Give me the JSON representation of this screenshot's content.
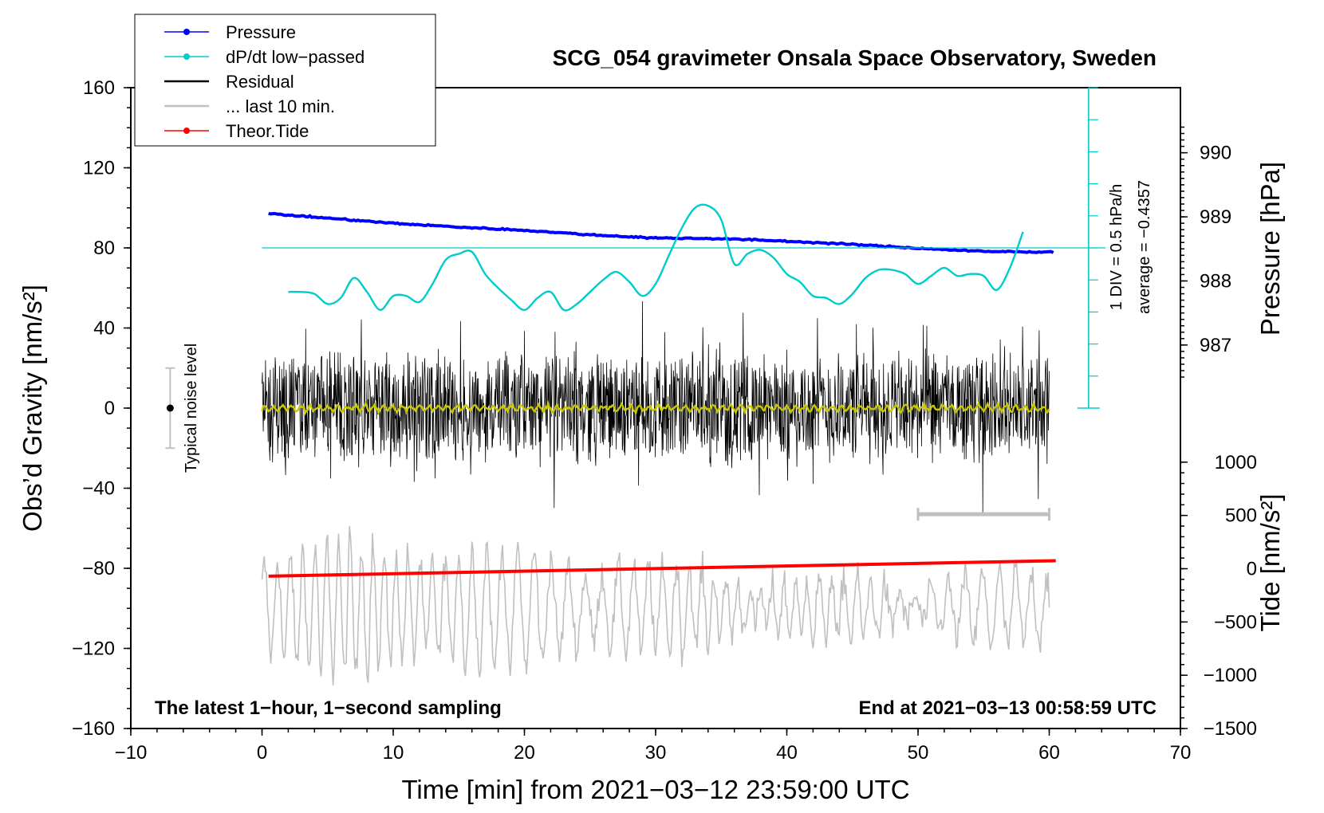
{
  "chart_data": {
    "type": "line",
    "title": "SCG_054 gravimeter Onsala Space Observatory, Sweden",
    "xlabel": "Time [min] from 2021−03−12 23:59:00 UTC",
    "ylabel_main": "Obs’d Gravity [nm/s²]",
    "ylabel_pressure": "Pressure [hPa]",
    "ylabel_tide": "Tide [nm/s²]",
    "xlim": [
      -10,
      70
    ],
    "ylim_main": [
      -160,
      160
    ],
    "x_ticks": [
      "−10",
      "0",
      "10",
      "20",
      "30",
      "40",
      "50",
      "60",
      "70"
    ],
    "y_ticks_main": [
      "160",
      "120",
      "80",
      "40",
      "0",
      "−40",
      "−80",
      "−120",
      "−160"
    ],
    "pressure_ticks": [
      "990",
      "989",
      "988",
      "987"
    ],
    "pressure_scale": {
      "hpa": [
        990,
        989,
        988,
        987
      ],
      "gravity_equiv": [
        127.5,
        95.5,
        63.5,
        31.5
      ]
    },
    "tide_ticks": [
      "1000",
      "500",
      "0",
      "−500",
      "−1000",
      "−1500"
    ],
    "tide_scale": {
      "tide": [
        1000,
        -1500
      ],
      "gravity_equiv": [
        -27,
        -160
      ]
    },
    "bottom_left_note": "The latest 1−hour, 1−second sampling",
    "bottom_right_note": "End at 2021−03−13 00:58:59 UTC",
    "noise_label": "Typical noise level",
    "noise_level": {
      "x": -7,
      "center": 0,
      "half_range": 20
    },
    "dpdt_scale_label": "1 DIV = 0.5 hPa/h",
    "dpdt_average_label": "average = −0.4357",
    "dpdt_axis": {
      "x": 63,
      "y_bottom": 0,
      "y_top": 160,
      "baseline": 80,
      "divisions": 10
    },
    "last_10_min_bar": {
      "x_start": 50,
      "x_end": 60,
      "y": -53
    },
    "legend": [
      {
        "label": "Pressure",
        "color": "#0000ff",
        "marker": true
      },
      {
        "label": "dP/dt low−passed",
        "color": "#00cccc",
        "marker": true
      },
      {
        "label": "Residual",
        "color": "#000000",
        "marker": false
      },
      {
        "label": "... last 10 min.",
        "color": "#c0c0c0",
        "marker": false
      },
      {
        "label": "Theor.Tide",
        "color": "#ff0000",
        "marker": true
      }
    ],
    "series": [
      {
        "name": "Pressure",
        "color": "#0000ff",
        "x": [
          0.5,
          5,
          10,
          15,
          20,
          25,
          30,
          35,
          40,
          45,
          50,
          55,
          60.5
        ],
        "hpa": [
          989.05,
          988.98,
          988.9,
          988.84,
          988.79,
          988.72,
          988.67,
          988.66,
          988.62,
          988.57,
          988.51,
          988.46,
          988.45
        ]
      },
      {
        "name": "dP/dt low−passed",
        "color": "#00cccc",
        "x": [
          2,
          3,
          4,
          5,
          6,
          7,
          8,
          9,
          10,
          11,
          12,
          13,
          14,
          15,
          16,
          17,
          18,
          19,
          20,
          21,
          22,
          23,
          24,
          25,
          26,
          27,
          28,
          29,
          30,
          31,
          32,
          33,
          34,
          35,
          36,
          37,
          38,
          39,
          40,
          41,
          42,
          43,
          44,
          45,
          46,
          47,
          48,
          49,
          50,
          51,
          52,
          53,
          54,
          55,
          56,
          57,
          58
        ],
        "y": [
          58,
          58,
          57,
          52,
          55,
          65,
          58,
          49,
          56,
          56,
          53,
          62,
          74,
          77,
          78,
          67,
          60,
          54,
          49,
          55,
          58,
          49,
          52,
          58,
          64,
          68,
          63,
          56,
          62,
          76,
          90,
          100,
          101,
          94,
          72,
          77,
          79,
          75,
          67,
          63,
          56,
          55,
          52,
          57,
          65,
          69,
          69,
          67,
          62,
          66,
          70,
          66,
          67,
          66,
          59,
          70,
          88
        ]
      },
      {
        "name": "Residual",
        "color": "#000000",
        "x_range": [
          0,
          60
        ],
        "amplitude": 30
      },
      {
        "name": "... last 10 min.",
        "color": "#c0c0c0",
        "x_range": [
          0,
          60
        ],
        "center": -100,
        "amplitude": 25
      },
      {
        "name": "Theor.Tide",
        "color": "#ff0000",
        "x": [
          0.5,
          60.5
        ],
        "tide": [
          -70,
          75
        ]
      },
      {
        "name": "Residual low−passed",
        "color": "#c8c800",
        "x_range": [
          0,
          60
        ],
        "y": 0
      }
    ]
  }
}
